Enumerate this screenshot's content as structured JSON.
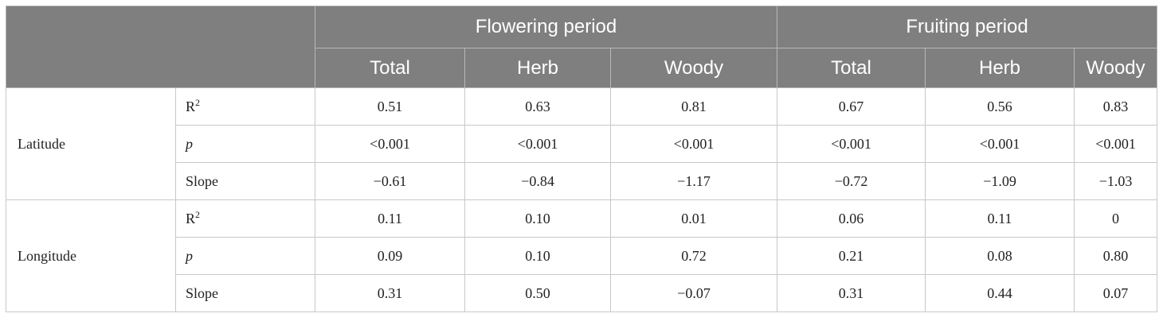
{
  "header": {
    "groups": [
      "Flowering period",
      "Fruiting period"
    ],
    "subheaders": [
      "Total",
      "Herb",
      "Woody",
      "Total",
      "Herb",
      "Woody"
    ]
  },
  "rows": {
    "latitude": {
      "label": "Latitude",
      "stats": [
        {
          "base": "R",
          "sup": "2",
          "values": [
            "0.51",
            "0.63",
            "0.81",
            "0.67",
            "0.56",
            "0.83"
          ]
        },
        {
          "base": "p",
          "values": [
            "<0.001",
            "<0.001",
            "<0.001",
            "<0.001",
            "<0.001",
            "<0.001"
          ]
        },
        {
          "base": "Slope",
          "values": [
            "−0.61",
            "−0.84",
            "−1.17",
            "−0.72",
            "−1.09",
            "−1.03"
          ]
        }
      ]
    },
    "longitude": {
      "label": "Longitude",
      "stats": [
        {
          "base": "R",
          "sup": "2",
          "values": [
            "0.11",
            "0.10",
            "0.01",
            "0.06",
            "0.11",
            "0"
          ]
        },
        {
          "base": "p",
          "values": [
            "0.09",
            "0.10",
            "0.72",
            "0.21",
            "0.08",
            "0.80"
          ]
        },
        {
          "base": "Slope",
          "values": [
            "0.31",
            "0.50",
            "−0.07",
            "0.31",
            "0.44",
            "0.07"
          ]
        }
      ]
    }
  }
}
